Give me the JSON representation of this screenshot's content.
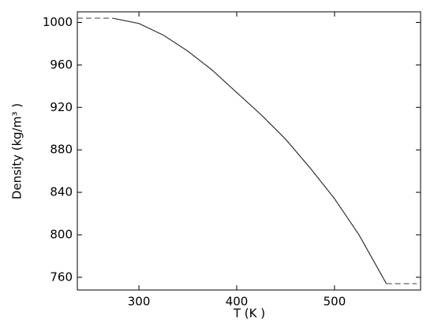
{
  "chart_data": {
    "type": "line",
    "x_label": "T (K )",
    "y_label": "Density  (kg/m³ )",
    "xlim": [
      237,
      588
    ],
    "ylim": [
      748,
      1010
    ],
    "xticks": [
      300,
      400,
      500
    ],
    "yticks": [
      760,
      800,
      840,
      880,
      920,
      960,
      1000
    ],
    "grid": false,
    "series": [
      {
        "color": "#555555",
        "dashed": true,
        "x": [
          237,
          273
        ],
        "values": [
          1004,
          1004
        ]
      },
      {
        "color": "#333333",
        "dashed": false,
        "x": [
          273,
          300,
          325,
          350,
          375,
          400,
          425,
          450,
          475,
          500,
          525,
          553
        ],
        "values": [
          1004,
          999,
          988,
          973,
          955,
          934,
          913,
          890,
          863,
          834,
          800,
          754
        ]
      },
      {
        "color": "#555555",
        "dashed": true,
        "x": [
          553,
          584
        ],
        "values": [
          754,
          754
        ]
      }
    ]
  }
}
